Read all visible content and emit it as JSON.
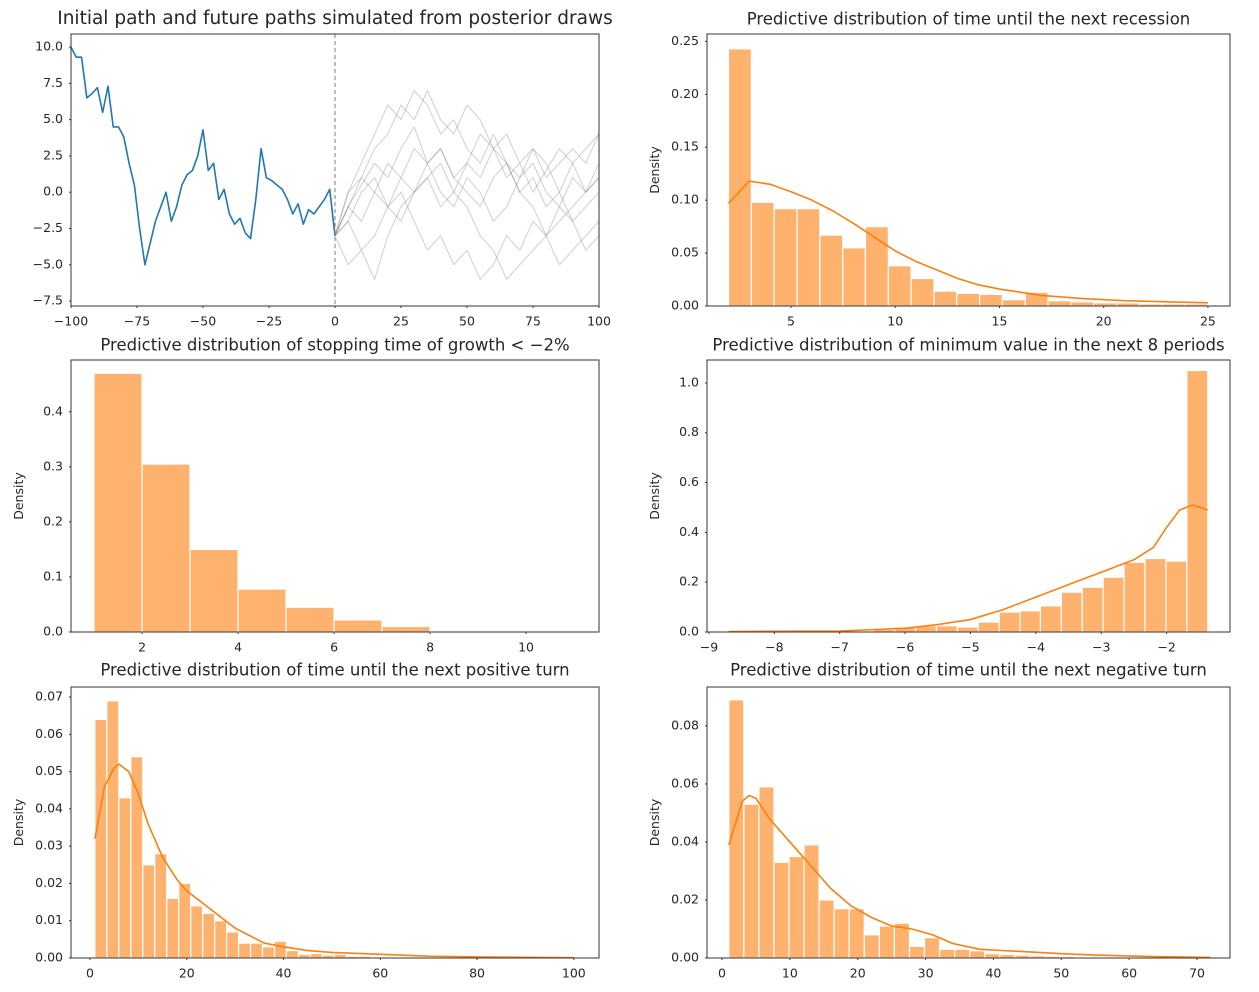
{
  "chart_data": [
    {
      "type": "line",
      "title": "Initial path and future paths simulated from posterior draws",
      "xlim": [
        -100,
        100
      ],
      "ylim": [
        -7.84,
        10.9
      ],
      "grid": false,
      "xticks": [
        {
          "value": -100,
          "label": "−100"
        },
        {
          "value": -75,
          "label": "−75"
        },
        {
          "value": -50,
          "label": "−50"
        },
        {
          "value": -25,
          "label": "−25"
        },
        0,
        25,
        50,
        75,
        100
      ],
      "yticks": [
        {
          "value": -7.5,
          "label": "−7.5"
        },
        {
          "value": -5,
          "label": "−5.0"
        },
        {
          "value": -2.5,
          "label": "−2.5"
        },
        {
          "value": 0,
          "label": "0.0"
        },
        2.5,
        {
          "value": 5,
          "label": "5.0"
        },
        7.5,
        {
          "value": 10,
          "label": "10.0"
        }
      ],
      "vline": 0,
      "vline_color": "#888888",
      "series": [
        {
          "color": "#1f77b4",
          "alpha": 1,
          "x": [
            -100,
            -98,
            -96,
            -94,
            -92,
            -90,
            -88,
            -86,
            -84,
            -82,
            -80,
            -78,
            -76,
            -74,
            -72,
            -70,
            -68,
            -66,
            -64,
            -62,
            -60,
            -58,
            -56,
            -54,
            -52,
            -50,
            -48,
            -46,
            -44,
            -42,
            -40,
            -38,
            -36,
            -34,
            -32,
            -30,
            -28,
            -26,
            -24,
            -22,
            -20,
            -18,
            -16,
            -14,
            -12,
            -10,
            -8,
            -6,
            -4,
            -2,
            0
          ],
          "values": [
            10,
            9.3,
            9.3,
            6.5,
            6.8,
            7.2,
            5.5,
            7.3,
            4.5,
            4.5,
            3.8,
            2,
            0.5,
            -2.5,
            -5,
            -3.5,
            -2,
            -1,
            0,
            -2,
            -1,
            0.5,
            1.2,
            1.5,
            2.5,
            4.3,
            1.5,
            2.0,
            -0.5,
            0.2,
            -1.5,
            -2.2,
            -1.8,
            -2.8,
            -3.2,
            -0.5,
            3,
            1.0,
            0.8,
            0.5,
            0.2,
            -0.5,
            -1.5,
            -0.8,
            -2.2,
            -1.2,
            -1.5,
            -1.0,
            -0.5,
            0.2,
            -3
          ]
        },
        {
          "color": "#808080",
          "alpha": 0.35,
          "x": [
            0,
            5,
            10,
            15,
            20,
            25,
            30,
            35,
            40,
            45,
            50,
            55,
            60,
            65,
            70,
            75,
            80,
            85,
            90,
            95,
            100
          ],
          "values": [
            -3,
            -1,
            0.5,
            2,
            1,
            3,
            4.5,
            2,
            3,
            1,
            2,
            4,
            3,
            1,
            2,
            0,
            1.5,
            3,
            2,
            0,
            1
          ]
        },
        {
          "color": "#808080",
          "alpha": 0.35,
          "x": [
            0,
            5,
            10,
            15,
            20,
            25,
            30,
            35,
            40,
            45,
            50,
            55,
            60,
            65,
            70,
            75,
            80,
            85,
            90,
            95,
            100
          ],
          "values": [
            -3,
            -2,
            -4,
            -3,
            -1,
            0,
            -2,
            -4,
            -3,
            -5,
            -4,
            -6,
            -5,
            -3,
            -4,
            -2,
            -3,
            -1,
            -2,
            -4,
            -3
          ]
        },
        {
          "color": "#808080",
          "alpha": 0.35,
          "x": [
            0,
            5,
            10,
            15,
            20,
            25,
            30,
            35,
            40,
            45,
            50,
            55,
            60,
            65,
            70,
            75,
            80,
            85,
            90,
            95,
            100
          ],
          "values": [
            -3,
            0,
            2,
            4,
            6,
            5,
            7,
            6,
            4,
            5,
            3,
            2,
            4,
            2,
            1,
            3,
            2,
            0,
            2,
            3,
            4
          ]
        },
        {
          "color": "#808080",
          "alpha": 0.35,
          "x": [
            0,
            5,
            10,
            15,
            20,
            25,
            30,
            35,
            40,
            45,
            50,
            55,
            60,
            65,
            70,
            75,
            80,
            85,
            90,
            95,
            100
          ],
          "values": [
            -3,
            -1,
            1,
            0,
            2,
            1,
            0,
            2,
            3,
            1,
            0,
            -1,
            1,
            2,
            0,
            -1,
            -3,
            -2,
            -1,
            0,
            1
          ]
        },
        {
          "color": "#808080",
          "alpha": 0.35,
          "x": [
            0,
            5,
            10,
            15,
            20,
            25,
            30,
            35,
            40,
            45,
            50,
            55,
            60,
            65,
            70,
            75,
            80,
            85,
            90,
            95,
            100
          ],
          "values": [
            -3,
            -2,
            0,
            1,
            -1,
            -2,
            0,
            1,
            2,
            0,
            -1,
            -3,
            -4,
            -6,
            -5,
            -4,
            -3,
            -5,
            -4,
            -3,
            -2
          ]
        },
        {
          "color": "#808080",
          "alpha": 0.35,
          "x": [
            0,
            5,
            10,
            15,
            20,
            25,
            30,
            35,
            40,
            45,
            50,
            55,
            60,
            65,
            70,
            75,
            80,
            85,
            90,
            95,
            100
          ],
          "values": [
            -3,
            -5,
            -4,
            -6,
            -3,
            -1,
            0,
            1,
            -1,
            0,
            2,
            1,
            3,
            2,
            0,
            1,
            -1,
            0,
            -2,
            -1,
            0
          ]
        },
        {
          "color": "#808080",
          "alpha": 0.35,
          "x": [
            0,
            5,
            10,
            15,
            20,
            25,
            30,
            35,
            40,
            45,
            50,
            55,
            60,
            65,
            70,
            75,
            80,
            85,
            90,
            95,
            100
          ],
          "values": [
            -3,
            0,
            1,
            3,
            4,
            6,
            5,
            7,
            5,
            4,
            6,
            5,
            3,
            4,
            2,
            3,
            1,
            2,
            3,
            2,
            4
          ]
        },
        {
          "color": "#808080",
          "alpha": 0.35,
          "x": [
            0,
            5,
            10,
            15,
            20,
            25,
            30,
            35,
            40,
            45,
            50,
            55,
            60,
            65,
            70,
            75,
            80,
            85,
            90,
            95,
            100
          ],
          "values": [
            -3,
            -1,
            -2,
            0,
            -1,
            1,
            3,
            2,
            0,
            -1,
            1,
            0,
            -2,
            -1,
            1,
            2,
            0,
            -1,
            1,
            0,
            2
          ]
        }
      ]
    },
    {
      "type": "histogram",
      "title": "Predictive distribution of time until the next recession",
      "ylabel": "Density",
      "xlim": [
        0.97,
        26.06
      ],
      "ylim": [
        0,
        0.257
      ],
      "grid": false,
      "xticks": [
        5,
        10,
        15,
        20,
        25
      ],
      "yticks": [
        {
          "value": 0,
          "label": "0.00"
        },
        0.05,
        {
          "value": 0.1,
          "label": "0.10"
        },
        0.15,
        {
          "value": 0.2,
          "label": "0.20"
        },
        0.25
      ],
      "color": "#ff7f0e",
      "alpha": 0.6,
      "edgecolor": "#ffffff",
      "bins": [
        2,
        3.1,
        4.19,
        5.29,
        6.38,
        7.48,
        8.57,
        9.67,
        10.76,
        11.86,
        12.95,
        14.05,
        15.14,
        16.24,
        17.33,
        18.43,
        19.52,
        20.62,
        21.71,
        22.81,
        23.9,
        25
      ],
      "values": [
        0.243,
        0.098,
        0.092,
        0.092,
        0.067,
        0.055,
        0.075,
        0.038,
        0.026,
        0.014,
        0.012,
        0.011,
        0.006,
        0.013,
        0.005,
        0.004,
        0.003,
        0.003,
        0.002,
        0.002,
        0.002
      ],
      "kde": {
        "color": "#ff7f0e",
        "x": [
          2,
          3,
          4,
          5,
          6,
          7,
          8,
          9,
          10,
          11,
          12,
          13,
          14,
          15,
          17,
          19,
          21,
          23,
          25
        ],
        "values": [
          0.097,
          0.118,
          0.115,
          0.108,
          0.1,
          0.09,
          0.078,
          0.065,
          0.052,
          0.042,
          0.034,
          0.026,
          0.02,
          0.016,
          0.01,
          0.007,
          0.005,
          0.004,
          0.003
        ]
      }
    },
    {
      "type": "histogram",
      "title": "Predictive distribution of stopping time of growth < −2%",
      "ylabel": "Density",
      "xlim": [
        0.52,
        11.52
      ],
      "ylim": [
        0,
        0.494
      ],
      "grid": false,
      "xticks": [
        2,
        4,
        6,
        8,
        10
      ],
      "yticks": [
        {
          "value": 0,
          "label": "0.0"
        },
        0.1,
        0.2,
        0.3,
        0.4
      ],
      "color": "#ff7f0e",
      "alpha": 0.6,
      "edgecolor": "#ffffff",
      "bins": [
        1,
        2,
        3,
        4,
        5,
        6,
        7,
        8,
        9,
        10,
        11
      ],
      "values": [
        0.47,
        0.305,
        0.15,
        0.078,
        0.045,
        0.022,
        0.01,
        0.001,
        0.0005,
        0
      ]
    },
    {
      "type": "histogram",
      "title": "Predictive distribution of minimum value in the next 8 periods",
      "ylabel": "Density",
      "xlim": [
        -9.03,
        -1.03
      ],
      "ylim": [
        0,
        1.092
      ],
      "grid": false,
      "xticks": [
        {
          "value": -9,
          "label": "−9"
        },
        {
          "value": -8,
          "label": "−8"
        },
        {
          "value": -7,
          "label": "−7"
        },
        {
          "value": -6,
          "label": "−6"
        },
        {
          "value": -5,
          "label": "−5"
        },
        {
          "value": -4,
          "label": "−4"
        },
        {
          "value": -3,
          "label": "−3"
        },
        {
          "value": -2,
          "label": "−2"
        }
      ],
      "yticks": [
        {
          "value": 0,
          "label": "0.0"
        },
        0.2,
        0.4,
        0.6,
        0.8,
        {
          "value": 1,
          "label": "1.0"
        }
      ],
      "color": "#ff7f0e",
      "alpha": 0.6,
      "edgecolor": "#ffffff",
      "bins": [
        -8.71,
        -8.39,
        -8.07,
        -7.75,
        -7.43,
        -7.12,
        -6.8,
        -6.48,
        -6.16,
        -5.84,
        -5.52,
        -5.2,
        -4.88,
        -4.56,
        -4.24,
        -3.93,
        -3.61,
        -3.29,
        -2.97,
        -2.65,
        -2.33,
        -2.01,
        -1.69,
        -1.37
      ],
      "values": [
        0.003,
        0.003,
        0.003,
        0.003,
        0.003,
        0.003,
        0.005,
        0.01,
        0.02,
        0.025,
        0.025,
        0.02,
        0.04,
        0.08,
        0.085,
        0.105,
        0.16,
        0.18,
        0.22,
        0.28,
        0.295,
        0.285,
        1.05
      ],
      "kde": {
        "color": "#ff7f0e",
        "x": [
          -8.7,
          -7,
          -6,
          -5.5,
          -5,
          -4.5,
          -4,
          -3.5,
          -3,
          -2.5,
          -2.2,
          -2,
          -1.8,
          -1.6,
          -1.37
        ],
        "values": [
          0.002,
          0.004,
          0.015,
          0.03,
          0.05,
          0.09,
          0.14,
          0.19,
          0.24,
          0.29,
          0.34,
          0.42,
          0.49,
          0.51,
          0.49
        ]
      }
    },
    {
      "type": "histogram",
      "title": "Predictive distribution of time until the next positive turn",
      "ylabel": "Density",
      "xlim": [
        -3.93,
        105.2
      ],
      "ylim": [
        0,
        0.0727
      ],
      "grid": false,
      "xticks": [
        0,
        20,
        40,
        60,
        80,
        100
      ],
      "yticks": [
        {
          "value": 0,
          "label": "0.00"
        },
        0.01,
        0.02,
        0.03,
        0.04,
        0.05,
        0.06,
        0.07
      ],
      "color": "#ff7f0e",
      "alpha": 0.6,
      "edgecolor": "#ffffff",
      "bins": [
        1,
        3.48,
        5.95,
        8.43,
        10.9,
        13.38,
        15.85,
        18.33,
        20.8,
        23.28,
        25.75,
        28.23,
        30.7,
        33.18,
        35.65,
        38.13,
        40.6,
        43.08,
        45.55,
        48.03,
        50.5,
        52.98,
        55.45,
        57.93,
        60.4,
        62.88,
        65.35,
        67.83,
        70.3,
        72.78,
        75.25,
        77.73,
        80.2,
        82.68,
        85.15,
        87.63,
        90.1,
        92.58,
        95.05,
        97.53,
        100
      ],
      "values": [
        0.064,
        0.069,
        0.043,
        0.054,
        0.025,
        0.028,
        0.016,
        0.02,
        0.014,
        0.012,
        0.01,
        0.007,
        0.004,
        0.004,
        0.003,
        0.0045,
        0.002,
        0.001,
        0.0012,
        0.0008,
        0.001,
        0.0005,
        0.0005,
        0.0003,
        0.0003,
        0.0002,
        0.0002,
        0.0002,
        0.0001,
        0.0001,
        0.0001,
        0.0001,
        0.0001,
        0,
        0,
        0,
        0,
        0,
        0,
        0.0001
      ],
      "kde": {
        "color": "#ff7f0e",
        "x": [
          1,
          3,
          5,
          6,
          8,
          10,
          12,
          15,
          18,
          20,
          22,
          25,
          28,
          30,
          33,
          36,
          40,
          45,
          50,
          60,
          70,
          80,
          90,
          100
        ],
        "values": [
          0.032,
          0.046,
          0.051,
          0.052,
          0.05,
          0.044,
          0.036,
          0.027,
          0.021,
          0.018,
          0.016,
          0.013,
          0.01,
          0.008,
          0.006,
          0.004,
          0.003,
          0.002,
          0.0015,
          0.001,
          0.0005,
          0.0003,
          0.0002,
          0.0001
        ]
      }
    },
    {
      "type": "histogram",
      "title": "Predictive distribution of time until the next negative turn",
      "ylabel": "Density",
      "xlim": [
        -2.21,
        74.86
      ],
      "ylim": [
        0,
        0.0934
      ],
      "grid": false,
      "xticks": [
        0,
        10,
        20,
        30,
        40,
        50,
        60,
        70
      ],
      "yticks": [
        {
          "value": 0,
          "label": "0.00"
        },
        0.02,
        0.04,
        0.06,
        0.08
      ],
      "color": "#ff7f0e",
      "alpha": 0.6,
      "edgecolor": "#ffffff",
      "bins": [
        1,
        3.22,
        5.44,
        7.66,
        9.88,
        12.09,
        14.31,
        16.53,
        18.75,
        20.97,
        23.19,
        25.41,
        27.63,
        29.84,
        32.06,
        34.28,
        36.5,
        38.72,
        40.94,
        43.16,
        45.38,
        47.59,
        49.81,
        52.03,
        54.25,
        56.47,
        58.69,
        60.91,
        63.13,
        65.34,
        67.56,
        69.78,
        72
      ],
      "values": [
        0.089,
        0.053,
        0.059,
        0.033,
        0.035,
        0.039,
        0.02,
        0.017,
        0.017,
        0.008,
        0.011,
        0.012,
        0.004,
        0.007,
        0.003,
        0.003,
        0.0025,
        0.0015,
        0.0012,
        0.001,
        0.0008,
        0.0006,
        0.0005,
        0.0004,
        0.0003,
        0.0002,
        0.0002,
        0.0001,
        0.0001,
        0.0001,
        0.0001,
        0.0001
      ],
      "kde": {
        "color": "#ff7f0e",
        "x": [
          1,
          3,
          4,
          5,
          7,
          10,
          13,
          16,
          19,
          22,
          25,
          28,
          31,
          34,
          38,
          42,
          46,
          50,
          55,
          60,
          66,
          72
        ],
        "values": [
          0.039,
          0.054,
          0.056,
          0.055,
          0.048,
          0.04,
          0.032,
          0.024,
          0.018,
          0.014,
          0.011,
          0.01,
          0.008,
          0.005,
          0.003,
          0.0025,
          0.002,
          0.0015,
          0.001,
          0.0007,
          0.0004,
          0.0002
        ]
      }
    }
  ]
}
